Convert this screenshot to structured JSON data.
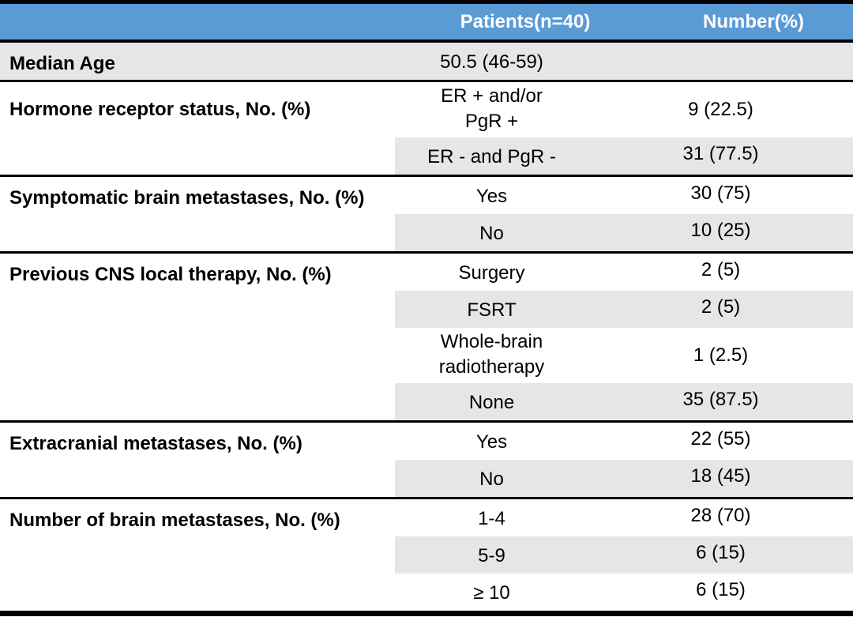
{
  "table": {
    "colors": {
      "header_bg": "#5B9BD5",
      "header_text": "#FFFFFF",
      "row_stripe": "#E7E6E6",
      "border": "#000000"
    },
    "header": {
      "patients": "Patients(n=40)",
      "number": "Number(%)"
    },
    "sections": [
      {
        "label": "Median Age",
        "rows": [
          {
            "value": "50.5 (46-59)",
            "number": ""
          }
        ]
      },
      {
        "label": "Hormone receptor status, No. (%)",
        "rows": [
          {
            "value": "ER + and/or\nPgR +",
            "number": "9 (22.5)"
          },
          {
            "value": "ER - and PgR -",
            "number": "31 (77.5)"
          }
        ]
      },
      {
        "label": "Symptomatic brain metastases, No. (%)",
        "rows": [
          {
            "value": "Yes",
            "number": "30 (75)"
          },
          {
            "value": "No",
            "number": "10 (25)"
          }
        ]
      },
      {
        "label": "Previous CNS local therapy, No. (%)",
        "rows": [
          {
            "value": "Surgery",
            "number": "2 (5)"
          },
          {
            "value": "FSRT",
            "number": "2 (5)"
          },
          {
            "value": "Whole-brain\nradiotherapy",
            "number": "1 (2.5)"
          },
          {
            "value": "None",
            "number": "35 (87.5)"
          }
        ]
      },
      {
        "label": "Extracranial metastases, No. (%)",
        "rows": [
          {
            "value": "Yes",
            "number": "22 (55)"
          },
          {
            "value": "No",
            "number": "18 (45)"
          }
        ]
      },
      {
        "label": "Number of brain metastases, No. (%)",
        "rows": [
          {
            "value": "1-4",
            "number": "28 (70)"
          },
          {
            "value": "5-9",
            "number": "6 (15)"
          },
          {
            "value": "≥ 10",
            "number": "6 (15)"
          }
        ]
      }
    ]
  }
}
